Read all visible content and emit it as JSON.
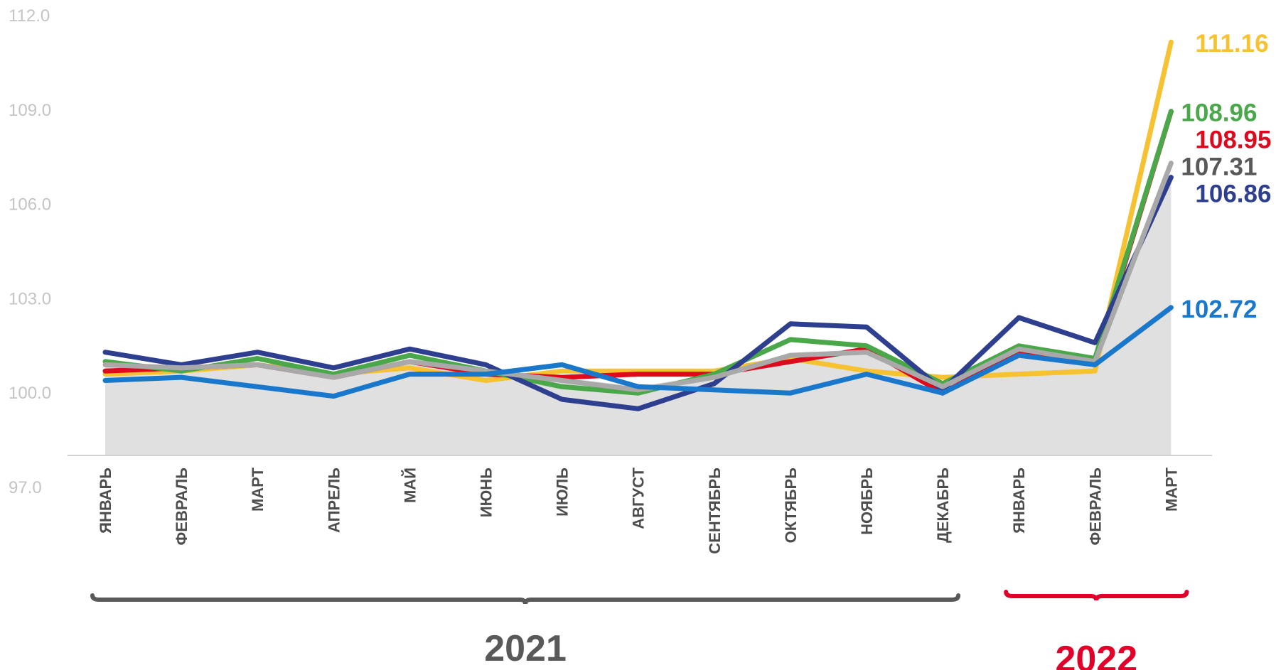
{
  "chart_data": {
    "type": "line",
    "title": "",
    "xlabel": "",
    "ylabel": "",
    "ylim": [
      97.0,
      112.0
    ],
    "yticks": [
      "112.0",
      "109.0",
      "106.0",
      "103.0",
      "100.0",
      "97.0"
    ],
    "ytick_values": [
      112,
      109,
      106,
      103,
      100,
      97
    ],
    "categories": [
      "ЯНВАРЬ",
      "ФЕВРАЛЬ",
      "МАРТ",
      "АПРЕЛЬ",
      "МАЙ",
      "ИЮНЬ",
      "ИЮЛЬ",
      "АВГУСТ",
      "СЕНТЯБРЬ",
      "ОКТЯБРЬ",
      "НОЯБРЬ",
      "ДЕКАБРЬ",
      "ЯНВАРЬ",
      "ФЕВРАЛЬ",
      "МАРТ"
    ],
    "groups": [
      {
        "label": "2021",
        "color": "#595959",
        "start": 0,
        "end": 11
      },
      {
        "label": "2022",
        "color": "#e0002a",
        "start": 12,
        "end": 14
      }
    ],
    "area": {
      "color": "#e0e0e0",
      "values": [
        100.9,
        100.8,
        100.9,
        100.6,
        101.0,
        100.7,
        100.5,
        100.2,
        100.6,
        101.2,
        101.3,
        100.3,
        101.4,
        101.1,
        107.0
      ]
    },
    "series": [
      {
        "color": "#f7c232",
        "end_label": "111.16",
        "values": [
          100.6,
          100.7,
          100.9,
          100.6,
          100.8,
          100.4,
          100.7,
          100.7,
          100.7,
          101.1,
          100.7,
          100.5,
          100.6,
          100.7,
          111.16
        ]
      },
      {
        "color": "#dd0a1e",
        "end_label": "108.95",
        "values": [
          100.7,
          100.8,
          100.9,
          100.5,
          101.0,
          100.6,
          100.5,
          100.6,
          100.6,
          101.0,
          101.4,
          100.0,
          101.3,
          101.0,
          108.95
        ]
      },
      {
        "color": "#4aa84a",
        "end_label": "108.96",
        "values": [
          101.0,
          100.7,
          101.1,
          100.6,
          101.2,
          100.7,
          100.2,
          100.0,
          100.6,
          101.7,
          101.5,
          100.3,
          101.5,
          101.1,
          108.96
        ]
      },
      {
        "color": "#2e3f8f",
        "end_label": "106.86",
        "values": [
          101.3,
          100.9,
          101.3,
          100.8,
          101.4,
          100.9,
          99.8,
          99.5,
          100.3,
          102.2,
          102.1,
          100.1,
          102.4,
          101.6,
          106.86
        ]
      },
      {
        "color": "#a9a9a9",
        "end_label": "107.31",
        "label_color": "#595959",
        "values": [
          100.9,
          100.8,
          100.9,
          100.5,
          101.0,
          100.7,
          100.4,
          100.1,
          100.5,
          101.2,
          101.3,
          100.2,
          101.4,
          101.0,
          107.31
        ]
      },
      {
        "color": "#1a78cc",
        "end_label": "102.72",
        "values": [
          100.4,
          100.5,
          100.2,
          99.9,
          100.6,
          100.6,
          100.9,
          100.2,
          100.1,
          100.0,
          100.6,
          100.0,
          101.2,
          100.9,
          102.72
        ]
      }
    ]
  }
}
